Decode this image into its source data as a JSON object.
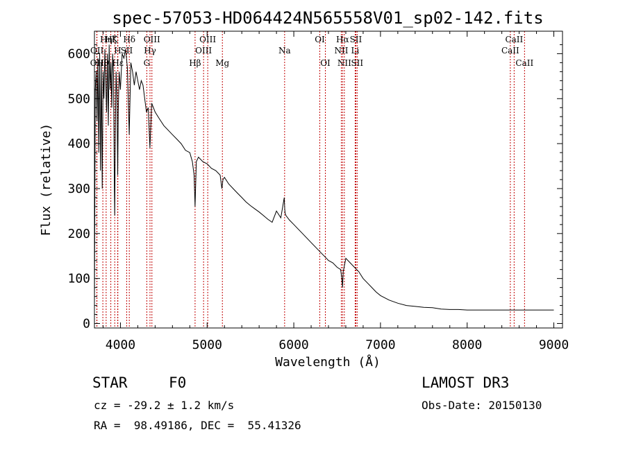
{
  "chart_data": {
    "type": "line",
    "title": "spec-57053-HD064424N565558V01_sp02-142.fits",
    "xlabel": "Wavelength (Å)",
    "ylabel": "Flux (relative)",
    "xlim": [
      3700,
      9100
    ],
    "ylim": [
      -10,
      650
    ],
    "xticks": [
      4000,
      5000,
      6000,
      7000,
      8000,
      9000
    ],
    "yticks": [
      0,
      100,
      200,
      300,
      400,
      500,
      600
    ],
    "series": [
      {
        "name": "flux",
        "x": [
          3700,
          3710,
          3720,
          3730,
          3740,
          3750,
          3760,
          3770,
          3780,
          3790,
          3800,
          3810,
          3820,
          3830,
          3840,
          3850,
          3860,
          3870,
          3880,
          3890,
          3900,
          3910,
          3920,
          3930,
          3934,
          3940,
          3950,
          3960,
          3968,
          3975,
          3985,
          4000,
          4020,
          4040,
          4060,
          4080,
          4101,
          4120,
          4140,
          4160,
          4180,
          4200,
          4220,
          4240,
          4260,
          4280,
          4300,
          4320,
          4340,
          4360,
          4380,
          4400,
          4450,
          4500,
          4550,
          4600,
          4650,
          4700,
          4750,
          4800,
          4830,
          4850,
          4861,
          4875,
          4900,
          4950,
          5000,
          5050,
          5100,
          5150,
          5170,
          5183,
          5200,
          5250,
          5300,
          5350,
          5400,
          5450,
          5500,
          5550,
          5600,
          5650,
          5700,
          5750,
          5800,
          5850,
          5890,
          5895,
          5900,
          5910,
          5950,
          6000,
          6050,
          6100,
          6150,
          6200,
          6250,
          6300,
          6350,
          6400,
          6450,
          6500,
          6540,
          6555,
          6563,
          6570,
          6580,
          6600,
          6650,
          6700,
          6750,
          6800,
          6850,
          6900,
          6950,
          7000,
          7100,
          7200,
          7300,
          7400,
          7500,
          7600,
          7700,
          7800,
          7900,
          8000,
          8100,
          8200,
          8300,
          8400,
          8500,
          8600,
          8700,
          8800,
          8900,
          9000
        ],
        "values": [
          40,
          520,
          560,
          450,
          590,
          380,
          600,
          340,
          580,
          300,
          560,
          500,
          610,
          540,
          470,
          600,
          440,
          620,
          520,
          580,
          480,
          600,
          550,
          300,
          240,
          420,
          560,
          500,
          330,
          470,
          560,
          520,
          600,
          590,
          610,
          570,
          420,
          580,
          560,
          530,
          560,
          540,
          520,
          540,
          530,
          500,
          470,
          480,
          390,
          490,
          480,
          470,
          455,
          440,
          430,
          420,
          410,
          400,
          385,
          380,
          360,
          330,
          260,
          360,
          370,
          360,
          355,
          345,
          340,
          330,
          300,
          320,
          325,
          310,
          300,
          290,
          280,
          270,
          262,
          255,
          248,
          240,
          232,
          225,
          250,
          235,
          280,
          255,
          245,
          240,
          230,
          220,
          210,
          200,
          190,
          180,
          170,
          160,
          150,
          140,
          135,
          125,
          120,
          100,
          80,
          115,
          125,
          145,
          135,
          125,
          115,
          100,
          90,
          80,
          70,
          62,
          52,
          45,
          40,
          38,
          36,
          35,
          32,
          31,
          31,
          30,
          30,
          30,
          30,
          30,
          30,
          30,
          30,
          30,
          30,
          30
        ]
      }
    ],
    "lines": [
      {
        "name": "OII",
        "x": 3727,
        "row": 3
      },
      {
        "name": "OII",
        "x": 3729,
        "row": 2
      },
      {
        "name": "Hθ",
        "x": 3797,
        "row": 3
      },
      {
        "name": "Hη",
        "x": 3835,
        "row": 1
      },
      {
        "name": "Hζ",
        "x": 3889,
        "row": 1
      },
      {
        "name": "Hε",
        "x": 3970,
        "row": 3
      },
      {
        "name": "K",
        "x": 3934,
        "row": 1
      },
      {
        "name": "H",
        "x": 3968,
        "row": 2
      },
      {
        "name": "SII",
        "x": 4072,
        "row": 2
      },
      {
        "name": "Hδ",
        "x": 4102,
        "row": 1
      },
      {
        "name": "G",
        "x": 4304,
        "row": 3
      },
      {
        "name": "Hγ",
        "x": 4341,
        "row": 2
      },
      {
        "name": "OIII",
        "x": 4363,
        "row": 1
      },
      {
        "name": "Hβ",
        "x": 4861,
        "row": 3
      },
      {
        "name": "OIII",
        "x": 4959,
        "row": 2
      },
      {
        "name": "OIII",
        "x": 5007,
        "row": 1
      },
      {
        "name": "Mg",
        "x": 5176,
        "row": 3
      },
      {
        "name": "Na",
        "x": 5894,
        "row": 2
      },
      {
        "name": "OI",
        "x": 6300,
        "row": 1
      },
      {
        "name": "OI",
        "x": 6364,
        "row": 3
      },
      {
        "name": "NII",
        "x": 6548,
        "row": 2
      },
      {
        "name": "Hα",
        "x": 6563,
        "row": 1
      },
      {
        "name": "NII",
        "x": 6583,
        "row": 3
      },
      {
        "name": "Li",
        "x": 6708,
        "row": 2
      },
      {
        "name": "SII",
        "x": 6716,
        "row": 1
      },
      {
        "name": "SII",
        "x": 6731,
        "row": 3
      },
      {
        "name": "CaII",
        "x": 8498,
        "row": 2
      },
      {
        "name": "CaII",
        "x": 8542,
        "row": 1
      },
      {
        "name": "CaII",
        "x": 8662,
        "row": 3
      }
    ]
  },
  "info": {
    "object_class": "STAR",
    "subclass": "F0",
    "survey": "LAMOST DR3",
    "cz": "cz = -29.2 ± 1.2 km/s",
    "obs_date": "Obs-Date: 20150130",
    "coords": "RA =  98.49186, DEC =  55.41326"
  }
}
